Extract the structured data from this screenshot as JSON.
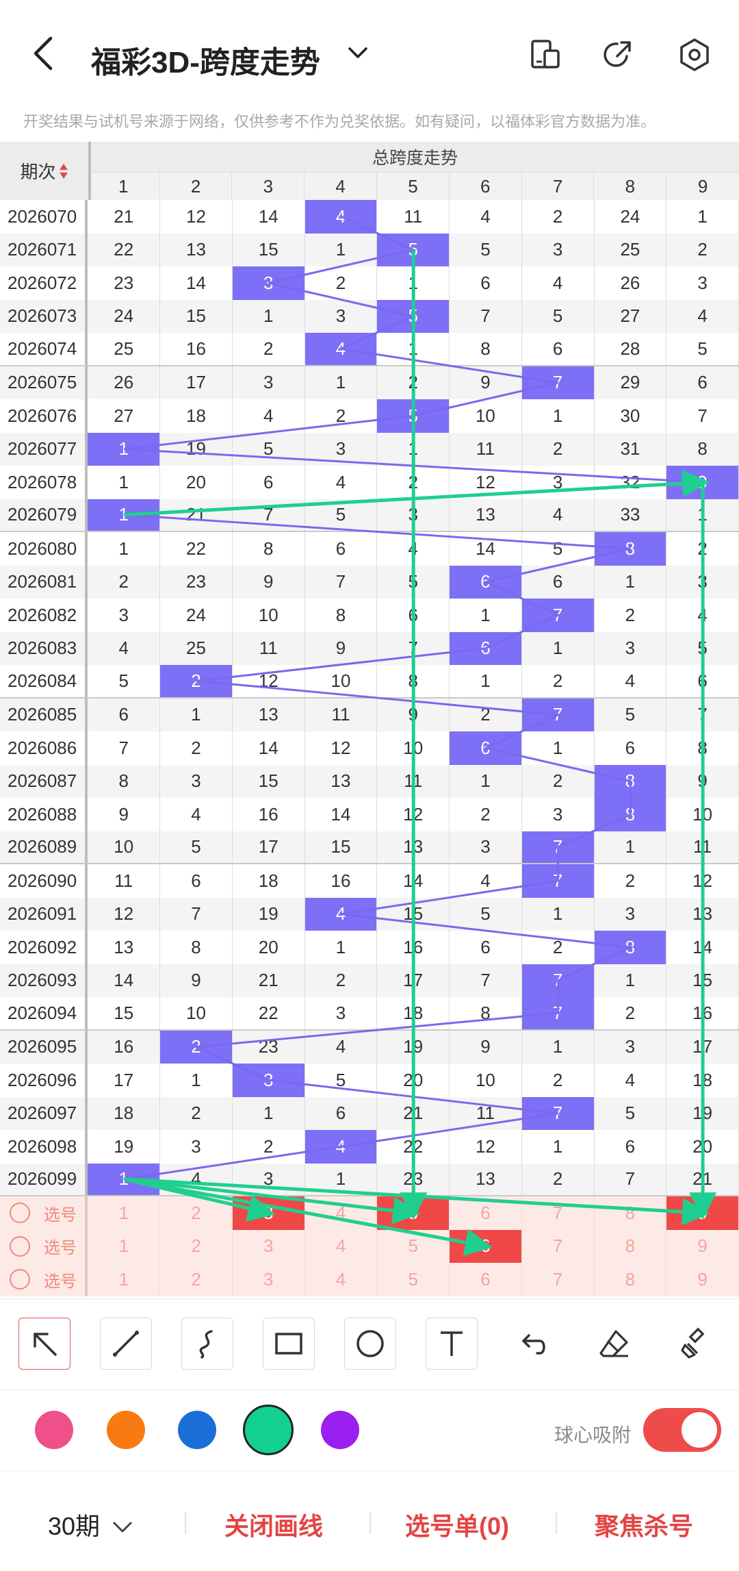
{
  "header": {
    "title": "福彩3D-跨度走势",
    "disclaimer": "开奖结果与试机号来源于网络，仅供参考不作为兑奖依据。如有疑问，以福体彩官方数据为准。"
  },
  "table": {
    "period_header": "期次",
    "span_header": "总跨度走势",
    "columns": [
      "1",
      "2",
      "3",
      "4",
      "5",
      "6",
      "7",
      "8",
      "9"
    ],
    "rows": [
      {
        "period": "2026070",
        "values": [
          "21",
          "12",
          "14",
          "4",
          "11",
          "4",
          "2",
          "24",
          "1"
        ],
        "hit": 4
      },
      {
        "period": "2026071",
        "values": [
          "22",
          "13",
          "15",
          "1",
          "5",
          "5",
          "3",
          "25",
          "2"
        ],
        "hit": 5
      },
      {
        "period": "2026072",
        "values": [
          "23",
          "14",
          "3",
          "2",
          "1",
          "6",
          "4",
          "26",
          "3"
        ],
        "hit": 3
      },
      {
        "period": "2026073",
        "values": [
          "24",
          "15",
          "1",
          "3",
          "5",
          "7",
          "5",
          "27",
          "4"
        ],
        "hit": 5
      },
      {
        "period": "2026074",
        "values": [
          "25",
          "16",
          "2",
          "4",
          "1",
          "8",
          "6",
          "28",
          "5"
        ],
        "hit": 4
      },
      {
        "period": "2026075",
        "values": [
          "26",
          "17",
          "3",
          "1",
          "2",
          "9",
          "7",
          "29",
          "6"
        ],
        "hit": 7
      },
      {
        "period": "2026076",
        "values": [
          "27",
          "18",
          "4",
          "2",
          "5",
          "10",
          "1",
          "30",
          "7"
        ],
        "hit": 5
      },
      {
        "period": "2026077",
        "values": [
          "1",
          "19",
          "5",
          "3",
          "1",
          "11",
          "2",
          "31",
          "8"
        ],
        "hit": 1
      },
      {
        "period": "2026078",
        "values": [
          "1",
          "20",
          "6",
          "4",
          "2",
          "12",
          "3",
          "32",
          "9"
        ],
        "hit": 9
      },
      {
        "period": "2026079",
        "values": [
          "1",
          "21",
          "7",
          "5",
          "3",
          "13",
          "4",
          "33",
          "1"
        ],
        "hit": 1
      },
      {
        "period": "2026080",
        "values": [
          "1",
          "22",
          "8",
          "6",
          "4",
          "14",
          "5",
          "8",
          "2"
        ],
        "hit": 8
      },
      {
        "period": "2026081",
        "values": [
          "2",
          "23",
          "9",
          "7",
          "5",
          "6",
          "6",
          "1",
          "3"
        ],
        "hit": 6
      },
      {
        "period": "2026082",
        "values": [
          "3",
          "24",
          "10",
          "8",
          "6",
          "1",
          "7",
          "2",
          "4"
        ],
        "hit": 7
      },
      {
        "period": "2026083",
        "values": [
          "4",
          "25",
          "11",
          "9",
          "7",
          "6",
          "1",
          "3",
          "5"
        ],
        "hit": 6
      },
      {
        "period": "2026084",
        "values": [
          "5",
          "2",
          "12",
          "10",
          "8",
          "1",
          "2",
          "4",
          "6"
        ],
        "hit": 2
      },
      {
        "period": "2026085",
        "values": [
          "6",
          "1",
          "13",
          "11",
          "9",
          "2",
          "7",
          "5",
          "7"
        ],
        "hit": 7
      },
      {
        "period": "2026086",
        "values": [
          "7",
          "2",
          "14",
          "12",
          "10",
          "6",
          "1",
          "6",
          "8"
        ],
        "hit": 6
      },
      {
        "period": "2026087",
        "values": [
          "8",
          "3",
          "15",
          "13",
          "11",
          "1",
          "2",
          "8",
          "9"
        ],
        "hit": 8
      },
      {
        "period": "2026088",
        "values": [
          "9",
          "4",
          "16",
          "14",
          "12",
          "2",
          "3",
          "8",
          "10"
        ],
        "hit": 8
      },
      {
        "period": "2026089",
        "values": [
          "10",
          "5",
          "17",
          "15",
          "13",
          "3",
          "7",
          "1",
          "11"
        ],
        "hit": 7
      },
      {
        "period": "2026090",
        "values": [
          "11",
          "6",
          "18",
          "16",
          "14",
          "4",
          "7",
          "2",
          "12"
        ],
        "hit": 7
      },
      {
        "period": "2026091",
        "values": [
          "12",
          "7",
          "19",
          "4",
          "15",
          "5",
          "1",
          "3",
          "13"
        ],
        "hit": 4
      },
      {
        "period": "2026092",
        "values": [
          "13",
          "8",
          "20",
          "1",
          "16",
          "6",
          "2",
          "8",
          "14"
        ],
        "hit": 8
      },
      {
        "period": "2026093",
        "values": [
          "14",
          "9",
          "21",
          "2",
          "17",
          "7",
          "7",
          "1",
          "15"
        ],
        "hit": 7
      },
      {
        "period": "2026094",
        "values": [
          "15",
          "10",
          "22",
          "3",
          "18",
          "8",
          "7",
          "2",
          "16"
        ],
        "hit": 7
      },
      {
        "period": "2026095",
        "values": [
          "16",
          "2",
          "23",
          "4",
          "19",
          "9",
          "1",
          "3",
          "17"
        ],
        "hit": 2
      },
      {
        "period": "2026096",
        "values": [
          "17",
          "1",
          "3",
          "5",
          "20",
          "10",
          "2",
          "4",
          "18"
        ],
        "hit": 3
      },
      {
        "period": "2026097",
        "values": [
          "18",
          "2",
          "1",
          "6",
          "21",
          "11",
          "7",
          "5",
          "19"
        ],
        "hit": 7
      },
      {
        "period": "2026098",
        "values": [
          "19",
          "3",
          "2",
          "4",
          "22",
          "12",
          "1",
          "6",
          "20"
        ],
        "hit": 4
      },
      {
        "period": "2026099",
        "values": [
          "1",
          "4",
          "3",
          "1",
          "23",
          "13",
          "2",
          "7",
          "21"
        ],
        "hit": 1
      }
    ],
    "select_rows": [
      {
        "label": "选号",
        "values": [
          "1",
          "2",
          "3",
          "4",
          "5",
          "6",
          "7",
          "8",
          "9"
        ],
        "picked": [
          3,
          5,
          9
        ]
      },
      {
        "label": "选号",
        "values": [
          "1",
          "2",
          "3",
          "4",
          "5",
          "6",
          "7",
          "8",
          "9"
        ],
        "picked": [
          6
        ]
      },
      {
        "label": "选号",
        "values": [
          "1",
          "2",
          "3",
          "4",
          "5",
          "6",
          "7",
          "8",
          "9"
        ],
        "picked": []
      }
    ]
  },
  "colors": {
    "hit": "#7d6ff6",
    "trend_line": "#7b68ee",
    "drawing": "#1fcf8f",
    "pick": "#f04747",
    "palette": [
      "#f0508a",
      "#f97a10",
      "#1a6fd6",
      "#12d18e",
      "#9a1ff0"
    ],
    "selected_palette": 3
  },
  "tools": [
    "arrow-tool-icon",
    "line-tool-icon",
    "curve-tool-icon",
    "rectangle-tool-icon",
    "circle-tool-icon",
    "text-tool-icon",
    "undo-icon",
    "eraser-icon",
    "clear-icon"
  ],
  "snap": {
    "label": "球心吸附",
    "on": true
  },
  "bottom": {
    "periods": "30期",
    "close_lines": "关闭画线",
    "selection": "选号单(0)",
    "focus": "聚焦杀号"
  }
}
